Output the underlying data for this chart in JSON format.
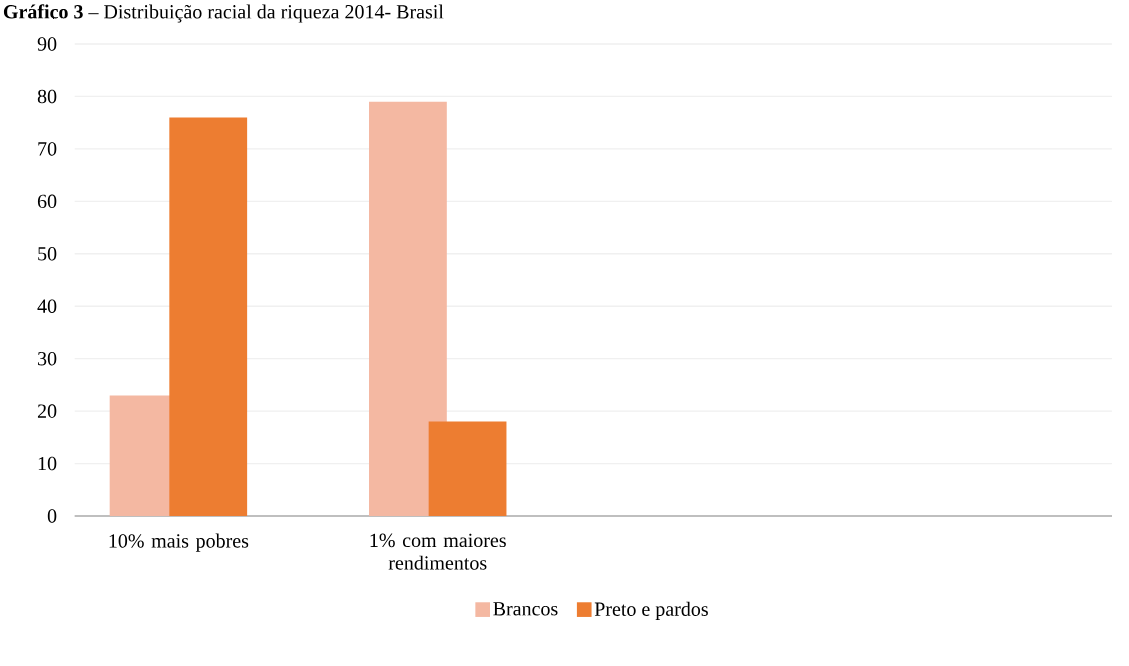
{
  "chart_data": {
    "type": "bar",
    "title": "**Gráfico 3** – Distribuição racial da riqueza 2014- Brasil",
    "categories": [
      "10% mais pobres",
      "1% com maiores rendimentos",
      null,
      null
    ],
    "series": [
      {
        "name": "Brancos",
        "color": "#f4b8a2",
        "values": [
          23,
          79,
          null,
          null
        ]
      },
      {
        "name": "Preto e pardos",
        "color": "#ed7d31",
        "values": [
          76,
          18,
          null,
          null
        ]
      }
    ],
    "ylim": [
      0,
      90
    ],
    "yticks": [
      0,
      10,
      20,
      30,
      40,
      50,
      60,
      70,
      80,
      90
    ],
    "grid": "y",
    "legend": "bottom"
  }
}
